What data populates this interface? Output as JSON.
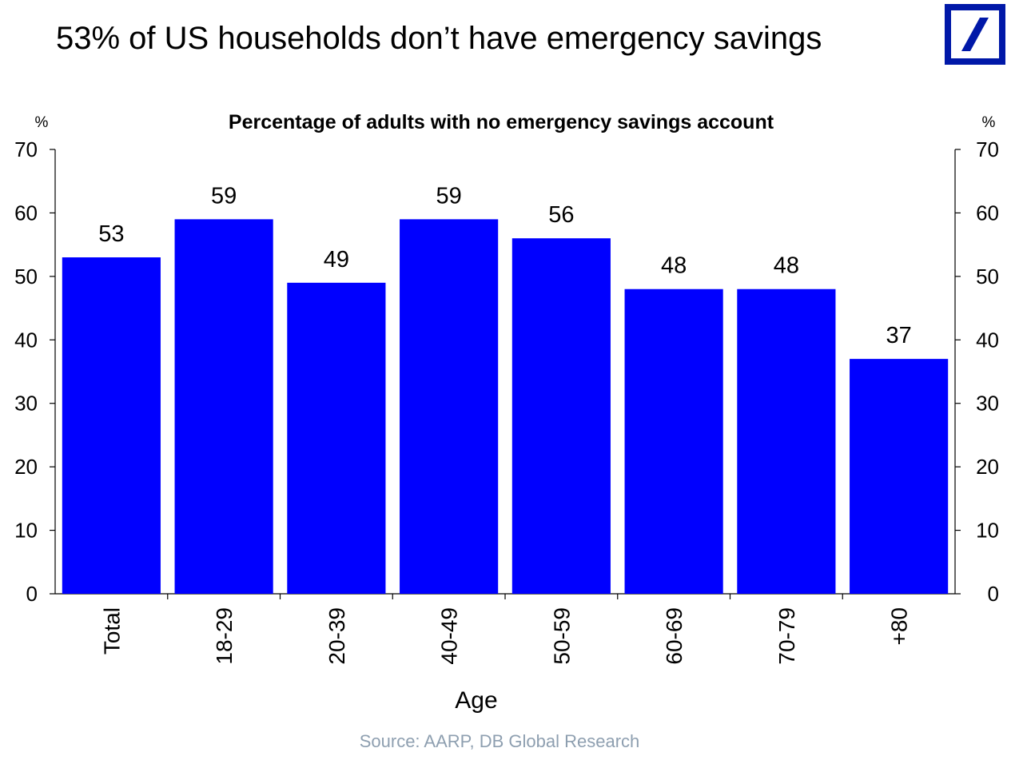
{
  "headline": "53% of US households don’t have emergency savings",
  "source": "Source: AARP, DB Global Research",
  "logo_icon": "deutsche-bank-logo-icon",
  "colors": {
    "bar": "#0000ff",
    "logo": "#0018a8",
    "source_text": "#8e9fb0"
  },
  "chart_data": {
    "type": "bar",
    "title": "Percentage of adults with no emergency savings account",
    "xlabel": "Age",
    "ylabel": "%",
    "ylabel_right": "%",
    "ylim": [
      0,
      70
    ],
    "yticks": [
      0,
      10,
      20,
      30,
      40,
      50,
      60,
      70
    ],
    "categories": [
      "Total",
      "18-29",
      "20-39",
      "40-49",
      "50-59",
      "60-69",
      "70-79",
      "+80"
    ],
    "values": [
      53,
      59,
      49,
      59,
      56,
      48,
      48,
      37
    ],
    "data_labels": [
      "53",
      "59",
      "49",
      "59",
      "56",
      "48",
      "48",
      "37"
    ],
    "grid": false,
    "legend": "none"
  }
}
